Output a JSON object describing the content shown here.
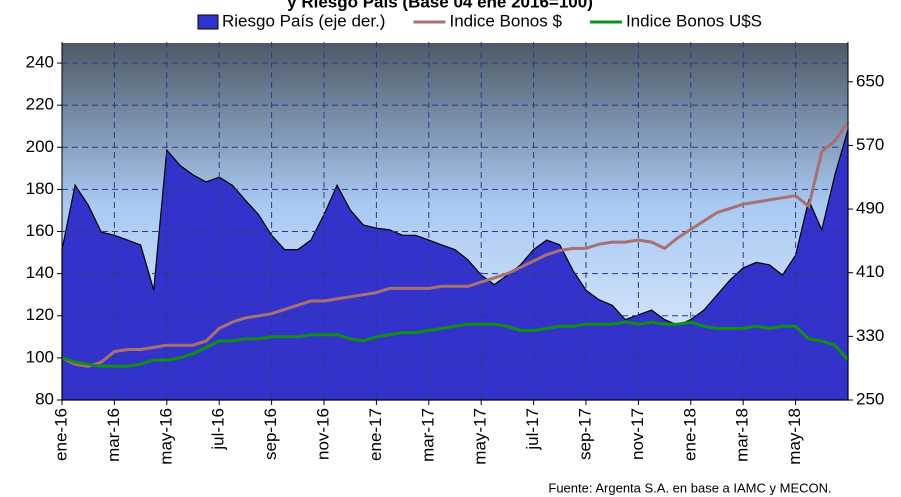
{
  "chart_data": {
    "type": "line",
    "title": "y Riesgo País (Base 04 ene 2016=100)",
    "source": "Fuente: Argenta S.A. en base a IAMC y MECON.",
    "categories": [
      "ene-16",
      null,
      null,
      null,
      "mar-16",
      null,
      null,
      null,
      "may-16",
      null,
      null,
      null,
      "jul-16",
      null,
      null,
      null,
      "sep-16",
      null,
      null,
      null,
      "nov-16",
      null,
      null,
      null,
      "ene-17",
      null,
      null,
      null,
      "mar-17",
      null,
      null,
      null,
      "may-17",
      null,
      null,
      null,
      "jul-17",
      null,
      null,
      null,
      "sep-17",
      null,
      null,
      null,
      "nov-17",
      null,
      null,
      null,
      "ene-18",
      null,
      null,
      null,
      "mar-18",
      null,
      null,
      null,
      "may-18",
      null,
      null,
      null,
      null
    ],
    "series": [
      {
        "name": "Riesgo País (eje der.)",
        "kind": "area",
        "axis": "y2",
        "color": "#3333cc",
        "values": [
          439,
          520,
          495,
          461,
          457,
          451,
          445,
          388,
          564,
          545,
          533,
          524,
          530,
          520,
          501,
          483,
          457,
          439,
          439,
          451,
          483,
          520,
          489,
          470,
          466,
          464,
          457,
          457,
          451,
          445,
          439,
          426,
          407,
          395,
          407,
          420,
          439,
          451,
          445,
          413,
          388,
          376,
          369,
          351,
          357,
          363,
          351,
          344,
          351,
          363,
          382,
          401,
          416,
          423,
          420,
          407,
          432,
          501,
          464,
          533,
          590
        ]
      },
      {
        "name": "Indice Bonos $",
        "kind": "line",
        "color": "#a87070",
        "values": [
          100,
          97,
          96,
          98,
          103,
          104,
          104,
          105,
          106,
          106,
          106,
          108,
          114,
          117,
          119,
          120,
          121,
          123,
          125,
          127,
          127,
          128,
          129,
          130,
          131,
          133,
          133,
          133,
          133,
          134,
          134,
          134,
          136,
          138,
          140,
          143,
          146,
          149,
          151,
          152,
          152,
          154,
          155,
          155,
          156,
          155,
          152,
          157,
          161,
          165,
          169,
          171,
          173,
          174,
          175,
          176,
          177,
          172,
          198,
          203,
          212
        ]
      },
      {
        "name": "Indice Bonos U$S",
        "kind": "line",
        "color": "#109010",
        "values": [
          100,
          98,
          97,
          96,
          96,
          96,
          97,
          99,
          99,
          100,
          102,
          105,
          108,
          108,
          109,
          109,
          110,
          110,
          110,
          111,
          111,
          111,
          109,
          108,
          110,
          111,
          112,
          112,
          113,
          114,
          115,
          116,
          116,
          116,
          115,
          113,
          113,
          114,
          115,
          115,
          116,
          116,
          116,
          117,
          116,
          117,
          116,
          116,
          117,
          115,
          114,
          114,
          114,
          115,
          114,
          115,
          115,
          109,
          108,
          106,
          99
        ]
      }
    ],
    "ylim": [
      80,
      250
    ],
    "yticks": [
      80,
      100,
      120,
      140,
      160,
      180,
      200,
      220,
      240
    ],
    "y2lim": [
      250,
      700
    ],
    "y2ticks": [
      250,
      330,
      410,
      490,
      570,
      650
    ],
    "grid": true
  }
}
